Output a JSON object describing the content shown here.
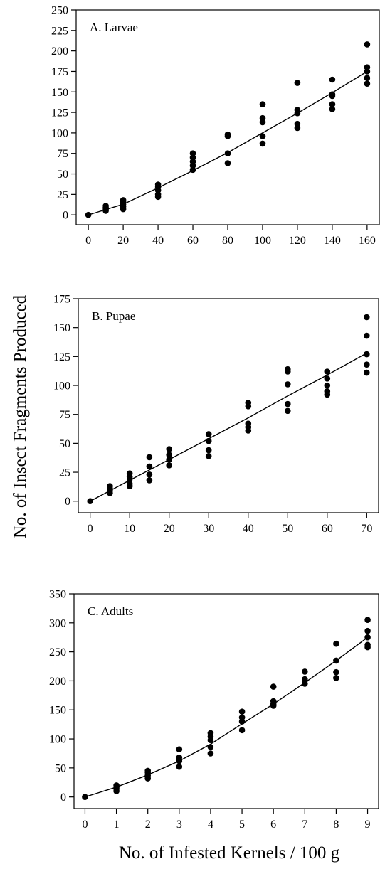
{
  "figure": {
    "ylabel": "No. of Insect Fragments Produced",
    "xlabel": "No. of Infested Kernels / 100 g"
  },
  "chart_data": [
    {
      "type": "scatter",
      "title": "A. Larvae",
      "xlabel": "",
      "ylabel": "",
      "xlim": [
        -7,
        167
      ],
      "ylim": [
        -12,
        250
      ],
      "xticks": [
        0,
        20,
        40,
        60,
        80,
        100,
        120,
        140,
        160
      ],
      "yticks": [
        0,
        25,
        50,
        75,
        100,
        125,
        150,
        175,
        200,
        225,
        250
      ],
      "points": [
        [
          0,
          0
        ],
        [
          10,
          5
        ],
        [
          10,
          7
        ],
        [
          10,
          9
        ],
        [
          10,
          11
        ],
        [
          20,
          7
        ],
        [
          20,
          10
        ],
        [
          20,
          13
        ],
        [
          20,
          16
        ],
        [
          20,
          18
        ],
        [
          40,
          22
        ],
        [
          40,
          25
        ],
        [
          40,
          30
        ],
        [
          40,
          34
        ],
        [
          40,
          37
        ],
        [
          60,
          55
        ],
        [
          60,
          60
        ],
        [
          60,
          65
        ],
        [
          60,
          70
        ],
        [
          60,
          75
        ],
        [
          80,
          63
        ],
        [
          80,
          75
        ],
        [
          80,
          96
        ],
        [
          80,
          98
        ],
        [
          100,
          87
        ],
        [
          100,
          96
        ],
        [
          100,
          113
        ],
        [
          100,
          118
        ],
        [
          100,
          135
        ],
        [
          120,
          106
        ],
        [
          120,
          111
        ],
        [
          120,
          124
        ],
        [
          120,
          128
        ],
        [
          120,
          161
        ],
        [
          140,
          129
        ],
        [
          140,
          135
        ],
        [
          140,
          145
        ],
        [
          140,
          147
        ],
        [
          140,
          165
        ],
        [
          160,
          160
        ],
        [
          160,
          167
        ],
        [
          160,
          175
        ],
        [
          160,
          180
        ],
        [
          160,
          208
        ]
      ],
      "fit_curve": [
        [
          0,
          0
        ],
        [
          20,
          13
        ],
        [
          40,
          33
        ],
        [
          60,
          54
        ],
        [
          80,
          76
        ],
        [
          100,
          100
        ],
        [
          120,
          124
        ],
        [
          140,
          149
        ],
        [
          160,
          175
        ]
      ]
    },
    {
      "type": "scatter",
      "title": "B. Pupae",
      "xlabel": "",
      "ylabel": "",
      "xlim": [
        -3,
        73
      ],
      "ylim": [
        -10,
        175
      ],
      "xticks": [
        0,
        10,
        20,
        30,
        40,
        50,
        60,
        70
      ],
      "yticks": [
        0,
        25,
        50,
        75,
        100,
        125,
        150,
        175
      ],
      "points": [
        [
          0,
          0
        ],
        [
          5,
          7
        ],
        [
          5,
          9
        ],
        [
          5,
          11
        ],
        [
          5,
          13
        ],
        [
          10,
          13
        ],
        [
          10,
          15
        ],
        [
          10,
          19
        ],
        [
          10,
          21
        ],
        [
          10,
          24
        ],
        [
          15,
          18
        ],
        [
          15,
          23
        ],
        [
          15,
          30
        ],
        [
          15,
          38
        ],
        [
          20,
          31
        ],
        [
          20,
          36
        ],
        [
          20,
          40
        ],
        [
          20,
          45
        ],
        [
          30,
          39
        ],
        [
          30,
          44
        ],
        [
          30,
          52
        ],
        [
          30,
          58
        ],
        [
          40,
          61
        ],
        [
          40,
          64
        ],
        [
          40,
          67
        ],
        [
          40,
          82
        ],
        [
          40,
          85
        ],
        [
          50,
          78
        ],
        [
          50,
          84
        ],
        [
          50,
          101
        ],
        [
          50,
          112
        ],
        [
          50,
          114
        ],
        [
          60,
          92
        ],
        [
          60,
          95
        ],
        [
          60,
          100
        ],
        [
          60,
          106
        ],
        [
          60,
          112
        ],
        [
          70,
          111
        ],
        [
          70,
          118
        ],
        [
          70,
          127
        ],
        [
          70,
          143
        ],
        [
          70,
          159
        ]
      ],
      "fit_curve": [
        [
          0,
          0
        ],
        [
          10,
          18
        ],
        [
          20,
          36
        ],
        [
          30,
          54
        ],
        [
          40,
          72
        ],
        [
          50,
          91
        ],
        [
          60,
          109
        ],
        [
          70,
          128
        ]
      ]
    },
    {
      "type": "scatter",
      "title": "C. Adults",
      "xlabel": "",
      "ylabel": "",
      "xlim": [
        -0.35,
        9.35
      ],
      "ylim": [
        -20,
        350
      ],
      "xticks": [
        0,
        1,
        2,
        3,
        4,
        5,
        6,
        7,
        8,
        9
      ],
      "yticks": [
        0,
        50,
        100,
        150,
        200,
        250,
        300,
        350
      ],
      "points": [
        [
          0,
          0
        ],
        [
          1,
          10
        ],
        [
          1,
          14
        ],
        [
          1,
          17
        ],
        [
          1,
          20
        ],
        [
          2,
          32
        ],
        [
          2,
          37
        ],
        [
          2,
          42
        ],
        [
          2,
          45
        ],
        [
          3,
          52
        ],
        [
          3,
          62
        ],
        [
          3,
          68
        ],
        [
          3,
          82
        ],
        [
          4,
          75
        ],
        [
          4,
          86
        ],
        [
          4,
          98
        ],
        [
          4,
          104
        ],
        [
          4,
          110
        ],
        [
          5,
          115
        ],
        [
          5,
          130
        ],
        [
          5,
          137
        ],
        [
          5,
          147
        ],
        [
          6,
          157
        ],
        [
          6,
          160
        ],
        [
          6,
          165
        ],
        [
          6,
          190
        ],
        [
          7,
          195
        ],
        [
          7,
          200
        ],
        [
          7,
          203
        ],
        [
          7,
          216
        ],
        [
          8,
          205
        ],
        [
          8,
          215
        ],
        [
          8,
          235
        ],
        [
          8,
          264
        ],
        [
          9,
          258
        ],
        [
          9,
          262
        ],
        [
          9,
          275
        ],
        [
          9,
          286
        ],
        [
          9,
          305
        ]
      ],
      "fit_curve": [
        [
          0,
          0
        ],
        [
          1,
          17
        ],
        [
          2,
          38
        ],
        [
          3,
          62
        ],
        [
          4,
          91
        ],
        [
          5,
          126
        ],
        [
          6,
          160
        ],
        [
          7,
          197
        ],
        [
          8,
          235
        ],
        [
          9,
          275
        ]
      ]
    }
  ]
}
